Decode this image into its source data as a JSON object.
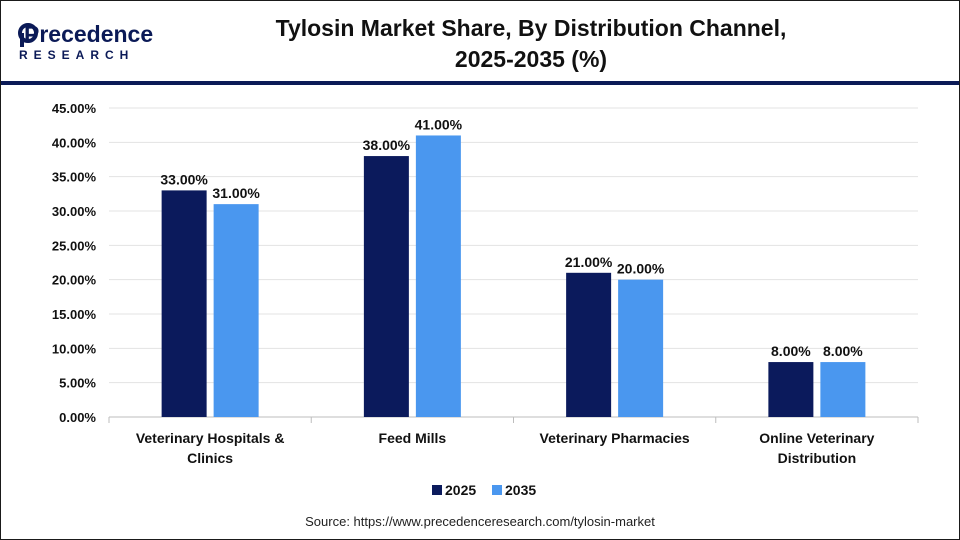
{
  "header": {
    "logo_word": "Precedence",
    "logo_sub": "RESEARCH",
    "title_line1": "Tylosin Market Share, By Distribution Channel,",
    "title_line2": "2025-2035 (%)"
  },
  "colors": {
    "series_2025": "#0b1a5c",
    "series_2035": "#4a97ef",
    "accent": "#0b1a57"
  },
  "chart_data": {
    "type": "bar",
    "title": "Tylosin Market Share, By Distribution Channel, 2025-2035 (%)",
    "categories": [
      [
        "Veterinary Hospitals &",
        "Clinics"
      ],
      [
        "Feed Mills"
      ],
      [
        "Veterinary Pharmacies"
      ],
      [
        "Online Veterinary",
        "Distribution"
      ]
    ],
    "series": [
      {
        "name": "2025",
        "values": [
          33,
          38,
          21,
          8
        ],
        "labels": [
          "33.00%",
          "38.00%",
          "21.00%",
          "8.00%"
        ]
      },
      {
        "name": "2035",
        "values": [
          31,
          41,
          20,
          8
        ],
        "labels": [
          "31.00%",
          "41.00%",
          "20.00%",
          "8.00%"
        ]
      }
    ],
    "ylim": [
      0,
      45
    ],
    "yticks": [
      "0.00%",
      "5.00%",
      "10.00%",
      "15.00%",
      "20.00%",
      "25.00%",
      "30.00%",
      "35.00%",
      "40.00%",
      "45.00%"
    ],
    "grid": true,
    "legend": "bottom-center"
  },
  "footer": {
    "source": "Source: https://www.precedenceresearch.com/tylosin-market"
  }
}
